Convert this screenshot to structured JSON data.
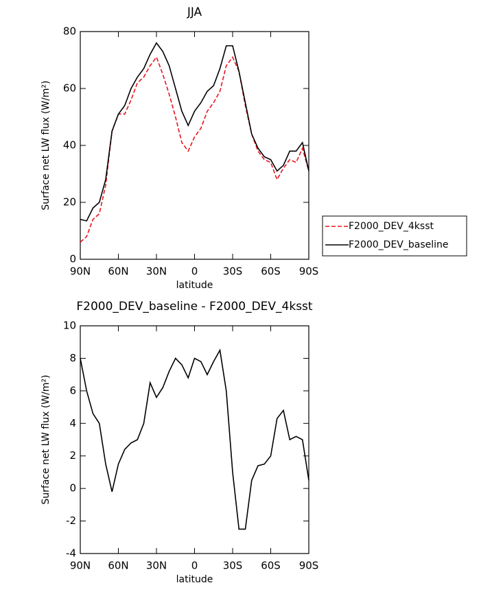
{
  "chart_data": [
    {
      "type": "line",
      "title": "JJA",
      "xlabel": "latitude",
      "ylabel": "Surface net LW flux (W/m²)",
      "x": [
        90,
        85,
        80,
        75,
        70,
        65,
        60,
        55,
        50,
        45,
        40,
        35,
        30,
        25,
        20,
        15,
        10,
        5,
        0,
        -5,
        -10,
        -15,
        -20,
        -25,
        -30,
        -35,
        -40,
        -45,
        -50,
        -55,
        -60,
        -65,
        -70,
        -75,
        -80,
        -85,
        -90
      ],
      "series": [
        {
          "name": "F2000_DEV_4ksst",
          "color": "#e8131b",
          "dash": true,
          "values": [
            6,
            8,
            14,
            16,
            26,
            45,
            51,
            51,
            56,
            62,
            64,
            68,
            71,
            65,
            58,
            50,
            41,
            38,
            43,
            46,
            52,
            55,
            59,
            68,
            71,
            66,
            54,
            44,
            38,
            35,
            34,
            28,
            32,
            35,
            34,
            39,
            31
          ]
        },
        {
          "name": "F2000_DEV_baseline",
          "color": "#000000",
          "dash": false,
          "values": [
            14,
            13.5,
            18,
            20,
            28,
            45,
            51,
            54,
            60,
            64,
            67,
            72,
            76,
            73,
            68,
            60,
            52,
            47,
            52,
            55,
            59,
            61,
            67,
            75,
            75,
            66,
            55,
            44,
            39,
            36,
            35,
            31,
            33,
            38,
            38,
            41,
            31
          ]
        }
      ],
      "xlim": [
        90,
        -90
      ],
      "xticks": [
        {
          "value": 90,
          "label": "90N"
        },
        {
          "value": 60,
          "label": "60N"
        },
        {
          "value": 30,
          "label": "30N"
        },
        0,
        {
          "value": -30,
          "label": "30S"
        },
        {
          "value": -60,
          "label": "60S"
        },
        {
          "value": -90,
          "label": "90S"
        }
      ],
      "ylim": [
        0,
        80
      ],
      "yticks": [
        0,
        20,
        40,
        60,
        80
      ],
      "legend": "right"
    },
    {
      "type": "line",
      "title": "F2000_DEV_baseline - F2000_DEV_4ksst",
      "xlabel": "latitude",
      "ylabel": "Surface net LW flux (W/m²)",
      "x": [
        90,
        85,
        80,
        75,
        70,
        65,
        60,
        55,
        50,
        45,
        40,
        35,
        30,
        25,
        20,
        15,
        10,
        5,
        0,
        -5,
        -10,
        -15,
        -20,
        -25,
        -30,
        -35,
        -40,
        -45,
        -50,
        -55,
        -60,
        -65,
        -70,
        -75,
        -80,
        -85,
        -90
      ],
      "series": [
        {
          "color": "#000000",
          "dash": false,
          "values": [
            8,
            6,
            4.6,
            4,
            1.5,
            -0.2,
            1.5,
            2.4,
            2.8,
            3,
            4,
            6.5,
            5.6,
            6.2,
            7.2,
            8,
            7.6,
            6.8,
            8,
            7.8,
            7,
            7.8,
            8.5,
            6,
            1,
            -2.5,
            -2.5,
            0.5,
            1.4,
            1.5,
            2,
            4.3,
            4.8,
            3,
            3.2,
            3,
            0.5
          ]
        }
      ],
      "xlim": [
        90,
        -90
      ],
      "xticks": [
        {
          "value": 90,
          "label": "90N"
        },
        {
          "value": 60,
          "label": "60N"
        },
        {
          "value": 30,
          "label": "30N"
        },
        0,
        {
          "value": -30,
          "label": "30S"
        },
        {
          "value": -60,
          "label": "60S"
        },
        {
          "value": -90,
          "label": "90S"
        }
      ],
      "ylim": [
        -4,
        10
      ],
      "yticks": [
        -4,
        -2,
        0,
        2,
        4,
        6,
        8,
        10
      ]
    }
  ]
}
